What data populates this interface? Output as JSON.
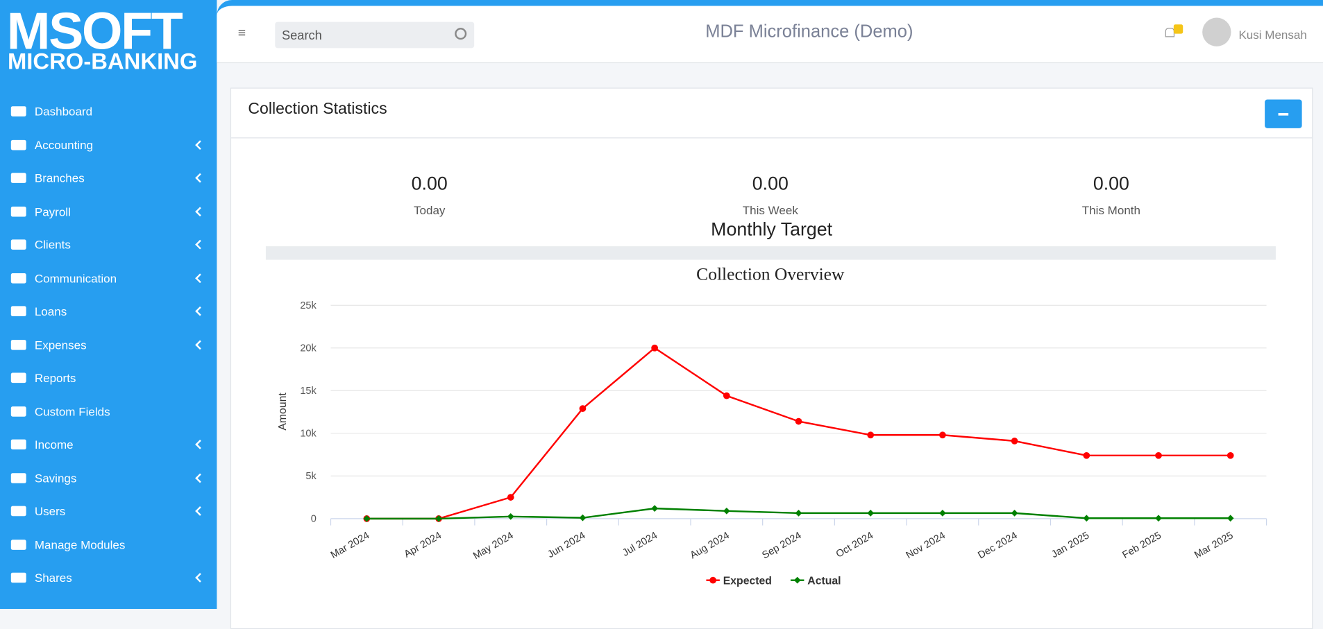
{
  "logo": {
    "line1": "MSOFT",
    "line2": "MICRO-BANKING"
  },
  "sidebar": {
    "items": [
      "Dashboard",
      "Accounting",
      "Branches",
      "Payroll",
      "Clients",
      "Communication",
      "Loans",
      "Expenses",
      "Reports",
      "Custom Fields",
      "Income",
      "Savings",
      "Users",
      "Manage Modules",
      "Shares"
    ]
  },
  "header": {
    "search_placeholder": "Search",
    "title": "MDF Microfinance (Demo)",
    "user": "Kusi Mensah"
  },
  "card": {
    "title": "Collection Statistics",
    "stats": [
      {
        "value": "0.00",
        "label": "Today"
      },
      {
        "value": "0.00",
        "label": "This Week"
      },
      {
        "value": "0.00",
        "label": "This Month"
      }
    ],
    "target_label": "Monthly Target"
  },
  "chart_data": {
    "type": "line",
    "title": "Collection Overview",
    "y_label": "Amount",
    "categories": [
      "Mar 2024",
      "Apr 2024",
      "May 2024",
      "Jun 2024",
      "Jul 2024",
      "Aug 2024",
      "Sep 2024",
      "Oct 2024",
      "Nov 2024",
      "Dec 2024",
      "Jan 2025",
      "Feb 2025",
      "Mar 2025"
    ],
    "series": [
      {
        "name": "Expected",
        "color": "#ff0000",
        "values": [
          0,
          0,
          2500,
          12900,
          20000,
          14400,
          11400,
          9800,
          9800,
          9100,
          7400,
          7400,
          7400
        ]
      },
      {
        "name": "Actual",
        "color": "#008000",
        "values": [
          0,
          0,
          250,
          100,
          1200,
          900,
          650,
          650,
          650,
          650,
          50,
          50,
          50
        ]
      }
    ],
    "ylim": [
      0,
      25000
    ],
    "yticks": [
      0,
      {
        "value": 5000,
        "label": "5k"
      },
      {
        "value": 10000,
        "label": "10k"
      },
      {
        "value": 15000,
        "label": "15k"
      },
      {
        "value": 20000,
        "label": "20k"
      },
      {
        "value": 25000,
        "label": "25k"
      }
    ],
    "grid": true,
    "legend": "bottom"
  }
}
